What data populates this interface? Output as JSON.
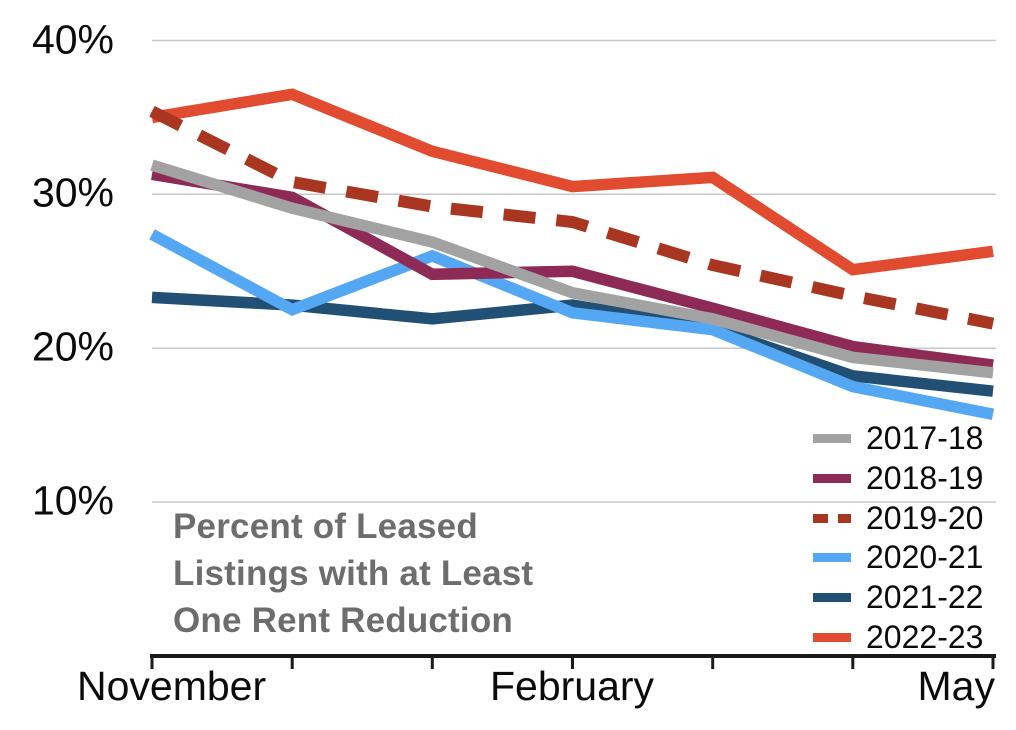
{
  "page": {
    "background": "#ffffff"
  },
  "annotation": {
    "lines": [
      "Percent of Leased",
      "Listings with at Least",
      "One Rent Reduction"
    ],
    "color": "#6d6d6d"
  },
  "axis": {
    "color": "#1a1a1a",
    "gridline_color": "#c8c8c8"
  },
  "chart_data": {
    "type": "line",
    "title": "Percent of Leased Listings with at Least One Rent Reduction",
    "num_points": 7,
    "x_tick_labels": [
      {
        "index": 0,
        "label": "November"
      },
      {
        "index": 3,
        "label": "February"
      },
      {
        "index": 6,
        "label": "May"
      }
    ],
    "y_ticks": [
      {
        "value": 40,
        "label": "40%"
      },
      {
        "value": 30,
        "label": "30%"
      },
      {
        "value": 20,
        "label": "20%"
      },
      {
        "value": 10,
        "label": "10%"
      }
    ],
    "ylim": [
      0,
      42.5
    ],
    "grid": "horizontal",
    "legend_position": "inside-bottom-right",
    "series": [
      {
        "name": "2017-18",
        "color": "#A2A2A2",
        "dashed": false,
        "values": [
          31.9,
          29.1,
          26.9,
          23.6,
          21.9,
          19.4,
          18.4
        ]
      },
      {
        "name": "2018-19",
        "color": "#8E2A56",
        "dashed": false,
        "values": [
          31.3,
          29.8,
          24.8,
          25.0,
          22.6,
          20.1,
          18.9
        ]
      },
      {
        "name": "2019-20",
        "color": "#A93621",
        "dashed": true,
        "values": [
          35.4,
          30.8,
          29.2,
          28.2,
          25.4,
          23.4,
          21.6
        ]
      },
      {
        "name": "2020-21",
        "color": "#54A7F2",
        "dashed": false,
        "values": [
          27.4,
          22.5,
          26.0,
          22.3,
          21.2,
          17.5,
          15.7
        ]
      },
      {
        "name": "2021-22",
        "color": "#224F74",
        "dashed": false,
        "values": [
          23.3,
          22.8,
          21.9,
          22.8,
          21.3,
          18.2,
          17.2
        ]
      },
      {
        "name": "2022-23",
        "color": "#E14B2F",
        "dashed": false,
        "values": [
          35.0,
          36.5,
          32.8,
          30.5,
          31.1,
          25.1,
          26.3
        ]
      }
    ],
    "z_order": [
      5,
      4,
      3,
      2,
      1,
      0
    ]
  }
}
